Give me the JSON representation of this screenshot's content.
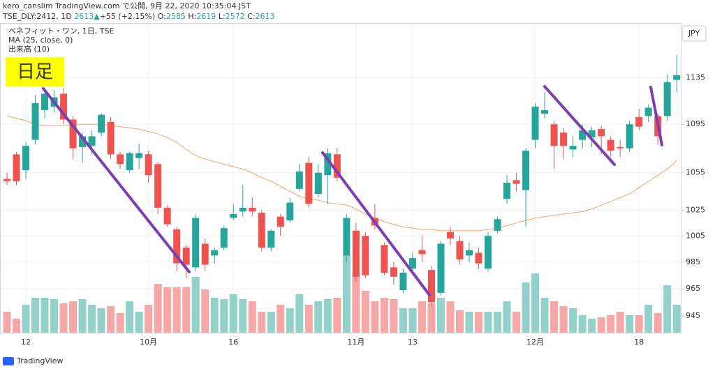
{
  "chart_data": {
    "type": "candlestick",
    "header": {
      "line1": "kero_canslim TradingView.com で公開, 9月 22, 2020 10:35:04 JST",
      "symbol": "TSE_DLY:2412, 1D",
      "last": "2613",
      "arrow": "▲",
      "change": "+55 (+2.15%)",
      "o_label": "O:",
      "o": "2585",
      "h_label": "H:",
      "h": "2619",
      "l_label": "L:",
      "l": "2572",
      "c_label": "C:",
      "c": "2613"
    },
    "legend": [
      "ベネフィット・ワン, 1日, TSE",
      "MA (25, close, 0)",
      "出来高 (10)"
    ],
    "badge": "日足",
    "currency": "JPY",
    "brand": "TradingView",
    "categories": [
      null,
      null,
      "12",
      null,
      null,
      null,
      null,
      null,
      null,
      null,
      null,
      null,
      null,
      null,
      null,
      "10月",
      null,
      null,
      null,
      null,
      null,
      null,
      null,
      null,
      "16",
      null,
      null,
      null,
      null,
      null,
      null,
      null,
      null,
      null,
      null,
      null,
      null,
      "11月",
      null,
      null,
      null,
      null,
      null,
      "13",
      null,
      null,
      null,
      null,
      null,
      null,
      null,
      null,
      null,
      null,
      null,
      null,
      "12月",
      null,
      null,
      null,
      null,
      null,
      null,
      null,
      null,
      null,
      null,
      "18",
      null,
      null,
      null,
      null
    ],
    "open": [
      1050,
      1070,
      1057,
      1082,
      1107,
      1110,
      1121,
      1099,
      1076,
      1077,
      1088,
      1097,
      1070,
      1057,
      1067,
      1070,
      1062,
      1027,
      1010,
      996,
      981,
      999,
      990,
      996,
      1019,
      1024,
      1027,
      1023,
      996,
      1020,
      1017,
      1042,
      1063,
      1038,
      1053,
      1070,
      990,
      1009,
      1005,
      1019,
      998,
      981,
      964,
      980,
      994,
      979,
      962,
      1008,
      1001,
      990,
      992,
      980,
      1009,
      1034,
      1049,
      1041,
      1082,
      1104,
      1095,
      1088,
      1074,
      1082,
      1084,
      1091,
      1082,
      1076,
      1075,
      1101,
      1102,
      1102,
      1102,
      1133
    ],
    "high": [
      1055,
      1072,
      1080,
      1120,
      1126,
      1124,
      1126,
      1102,
      1088,
      1090,
      1104,
      1101,
      1072,
      1072,
      1079,
      1073,
      1064,
      1029,
      1012,
      998,
      1022,
      1003,
      996,
      1013,
      1030,
      1045,
      1035,
      1025,
      1010,
      1022,
      1035,
      1062,
      1068,
      1062,
      1075,
      1075,
      1022,
      1015,
      1008,
      1030,
      1000,
      985,
      980,
      992,
      1005,
      982,
      1001,
      1012,
      1005,
      1000,
      996,
      1008,
      1020,
      1053,
      1055,
      1075,
      1113,
      1122,
      1098,
      1092,
      1085,
      1095,
      1093,
      1094,
      1085,
      1082,
      1098,
      1108,
      1112,
      1104,
      1138,
      1155
    ],
    "low": [
      1045,
      1045,
      1050,
      1078,
      1100,
      1105,
      1095,
      1066,
      1063,
      1070,
      1085,
      1066,
      1058,
      1055,
      1058,
      1047,
      1022,
      1012,
      978,
      973,
      978,
      978,
      984,
      994,
      1017,
      1020,
      1020,
      993,
      993,
      1005,
      1015,
      1040,
      1027,
      1035,
      1030,
      1048,
      985,
      970,
      973,
      1010,
      975,
      968,
      962,
      977,
      985,
      952,
      960,
      998,
      983,
      985,
      980,
      978,
      1007,
      1030,
      1040,
      1012,
      1075,
      1100,
      1058,
      1066,
      1068,
      1075,
      1076,
      1070,
      1068,
      1068,
      1072,
      1090,
      1097,
      1078,
      1098,
      1122
    ],
    "close": [
      1048,
      1048,
      1077,
      1113,
      1121,
      1118,
      1099,
      1075,
      1085,
      1085,
      1103,
      1070,
      1062,
      1071,
      1071,
      1053,
      1027,
      1014,
      984,
      983,
      1019,
      983,
      994,
      1011,
      1022,
      1027,
      1024,
      996,
      1009,
      1012,
      1031,
      1056,
      1030,
      1055,
      1071,
      1051,
      1019,
      974,
      975,
      1013,
      977,
      974,
      977,
      988,
      991,
      955,
      999,
      1003,
      987,
      994,
      984,
      1005,
      1018,
      1047,
      1046,
      1073,
      1110,
      1107,
      1077,
      1077,
      1077,
      1090,
      1090,
      1085,
      1073,
      1075,
      1095,
      1093,
      1109,
      1085,
      1131,
      1137
    ],
    "ma": [
      1102,
      1100,
      1098,
      1095,
      1094,
      1094,
      1094,
      1095,
      1095,
      1095,
      1095,
      1094,
      1093,
      1092,
      1091,
      1089,
      1087,
      1084,
      1080,
      1074,
      1069,
      1066,
      1064,
      1062,
      1060,
      1058,
      1055,
      1051,
      1048,
      1044,
      1040,
      1036,
      1034,
      1033,
      1031,
      1030,
      1029,
      1026,
      1022,
      1019,
      1016,
      1014,
      1012,
      1011,
      1010,
      1010,
      1009,
      1009,
      1009,
      1009,
      1009,
      1010,
      1011,
      1013,
      1015,
      1017,
      1019,
      1020,
      1021,
      1022,
      1023,
      1024,
      1026,
      1029,
      1032,
      1035,
      1038,
      1043,
      1048,
      1053,
      1058,
      1065
    ],
    "volume": [
      30,
      20,
      40,
      50,
      50,
      48,
      42,
      45,
      48,
      40,
      35,
      38,
      28,
      45,
      30,
      40,
      70,
      65,
      65,
      65,
      80,
      62,
      50,
      48,
      55,
      48,
      45,
      30,
      30,
      40,
      35,
      55,
      40,
      45,
      48,
      50,
      112,
      85,
      60,
      45,
      50,
      48,
      35,
      35,
      45,
      42,
      50,
      45,
      32,
      30,
      30,
      30,
      30,
      45,
      30,
      72,
      85,
      50,
      45,
      38,
      35,
      25,
      20,
      22,
      25,
      30,
      25,
      25,
      40,
      28,
      68,
      40
    ],
    "volume_ylim": [
      0,
      130
    ],
    "ylim": [
      933,
      1183
    ],
    "log_scale": true,
    "yticks": [
      945,
      965,
      985,
      1005,
      1025,
      1055,
      1095,
      1135
    ],
    "up_color": "#26a69a",
    "down_color": "#ef5350",
    "volume_up_color": "#93d2ca",
    "volume_down_color": "#f5a8a6",
    "ma_color": "#f5a36a",
    "grid": true
  }
}
